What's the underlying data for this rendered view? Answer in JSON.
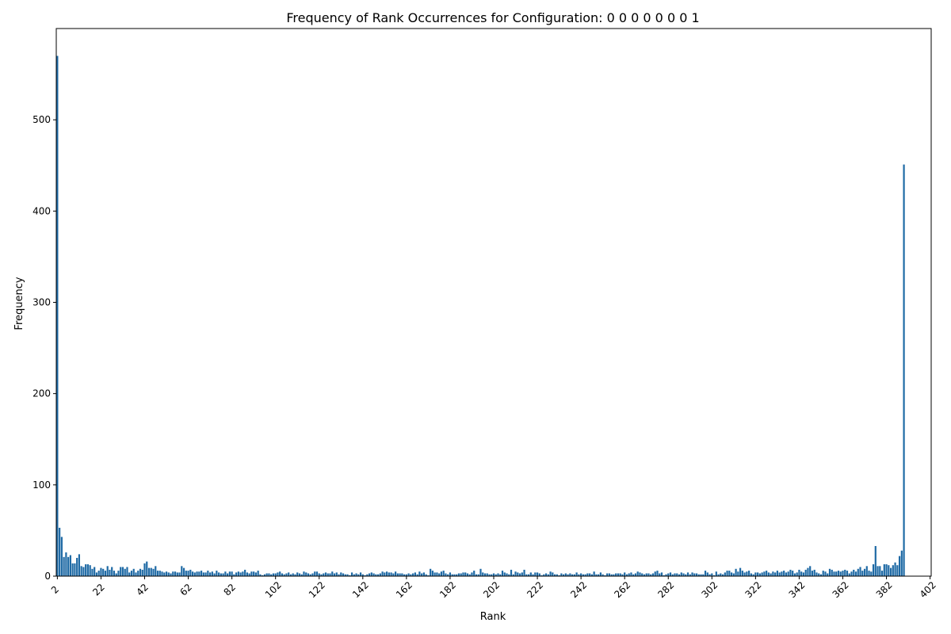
{
  "chart_data": {
    "type": "bar",
    "title": "Frequency of Rank Occurrences for Configuration: 0 0 0 0 0 0 0 1",
    "xlabel": "Rank",
    "ylabel": "Frequency",
    "x_range": [
      2,
      402
    ],
    "ylim": [
      0,
      600
    ],
    "y_ticks": [
      0,
      100,
      200,
      300,
      400,
      500
    ],
    "x_ticks": [
      2,
      22,
      42,
      62,
      82,
      102,
      122,
      142,
      162,
      182,
      202,
      222,
      242,
      262,
      282,
      302,
      322,
      342,
      362,
      382,
      402
    ],
    "bar_color": "#1f6aa5",
    "grid": false,
    "legend": "none",
    "ranks_start": 2,
    "values": [
      570,
      53,
      43,
      21,
      26,
      21,
      23,
      14,
      14,
      20,
      24,
      11,
      10,
      13,
      13,
      12,
      8,
      10,
      4,
      6,
      9,
      8,
      6,
      11,
      7,
      10,
      6,
      3,
      6,
      10,
      10,
      8,
      10,
      4,
      6,
      8,
      4,
      6,
      8,
      7,
      14,
      16,
      9,
      9,
      8,
      11,
      6,
      6,
      5,
      4,
      5,
      4,
      3,
      5,
      5,
      4,
      4,
      11,
      9,
      6,
      6,
      7,
      5,
      4,
      5,
      5,
      6,
      4,
      4,
      6,
      4,
      5,
      3,
      6,
      4,
      3,
      3,
      5,
      3,
      5,
      5,
      2,
      4,
      5,
      4,
      5,
      7,
      4,
      3,
      5,
      5,
      4,
      6,
      2,
      1,
      2,
      3,
      3,
      2,
      3,
      3,
      4,
      5,
      3,
      2,
      3,
      4,
      2,
      3,
      2,
      4,
      3,
      2,
      5,
      4,
      3,
      2,
      3,
      5,
      5,
      3,
      2,
      3,
      4,
      3,
      3,
      5,
      3,
      4,
      2,
      4,
      3,
      2,
      2,
      1,
      4,
      2,
      3,
      2,
      4,
      2,
      1,
      2,
      3,
      4,
      3,
      2,
      2,
      3,
      5,
      4,
      5,
      4,
      4,
      3,
      5,
      3,
      3,
      3,
      2,
      2,
      3,
      2,
      3,
      4,
      2,
      5,
      3,
      4,
      2,
      1,
      8,
      6,
      4,
      4,
      3,
      5,
      6,
      3,
      2,
      4,
      2,
      2,
      2,
      3,
      3,
      4,
      4,
      3,
      2,
      4,
      6,
      2,
      2,
      8,
      4,
      3,
      3,
      2,
      2,
      3,
      2,
      3,
      2,
      6,
      4,
      3,
      2,
      7,
      2,
      5,
      4,
      3,
      4,
      7,
      2,
      2,
      4,
      2,
      4,
      4,
      3,
      1,
      2,
      3,
      2,
      5,
      4,
      2,
      2,
      1,
      3,
      2,
      3,
      2,
      3,
      2,
      2,
      4,
      2,
      3,
      2,
      2,
      3,
      3,
      2,
      5,
      2,
      2,
      4,
      2,
      1,
      3,
      3,
      2,
      2,
      3,
      3,
      3,
      2,
      4,
      2,
      3,
      4,
      2,
      3,
      5,
      4,
      3,
      2,
      3,
      3,
      2,
      3,
      5,
      6,
      3,
      4,
      1,
      2,
      3,
      4,
      2,
      3,
      3,
      2,
      4,
      3,
      2,
      4,
      2,
      4,
      3,
      3,
      2,
      2,
      2,
      6,
      4,
      2,
      3,
      1,
      5,
      2,
      3,
      2,
      4,
      6,
      6,
      4,
      3,
      8,
      5,
      9,
      6,
      4,
      5,
      6,
      3,
      2,
      4,
      4,
      3,
      4,
      5,
      6,
      4,
      3,
      5,
      4,
      6,
      4,
      5,
      6,
      4,
      5,
      7,
      6,
      3,
      4,
      7,
      5,
      4,
      7,
      9,
      11,
      6,
      7,
      4,
      3,
      2,
      6,
      5,
      3,
      8,
      7,
      5,
      5,
      6,
      5,
      6,
      7,
      6,
      3,
      5,
      7,
      5,
      8,
      10,
      6,
      8,
      11,
      6,
      5,
      13,
      33,
      11,
      11,
      6,
      13,
      13,
      12,
      9,
      12,
      15,
      12,
      22,
      28,
      451
    ]
  }
}
